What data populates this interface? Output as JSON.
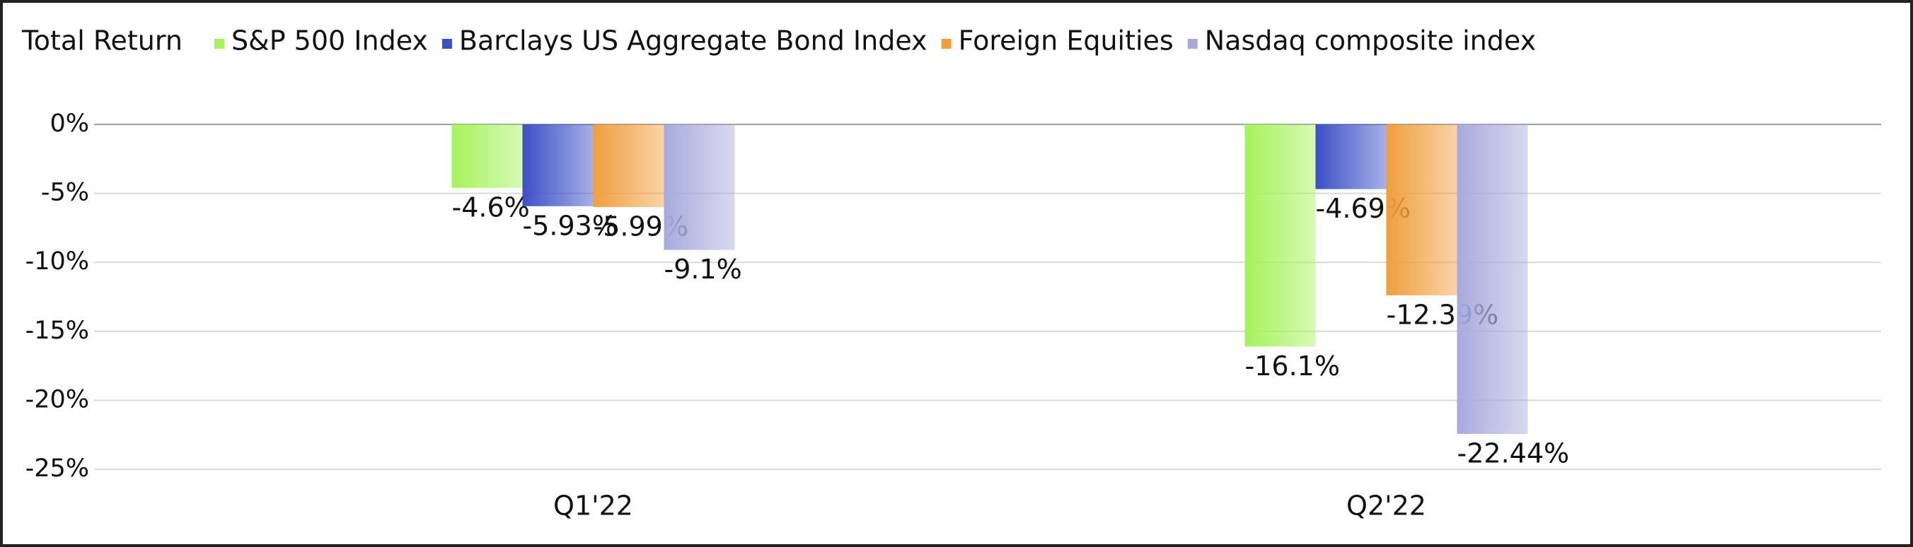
{
  "chart_data": {
    "type": "bar",
    "title": "Total Return",
    "categories": [
      "Q1'22",
      "Q2'22"
    ],
    "series": [
      {
        "name": "S&P 500 Index",
        "color": "#a6f25a",
        "values": [
          -4.6,
          -16.1
        ],
        "value_labels": [
          "-4.6%",
          "-16.1%"
        ]
      },
      {
        "name": "Barclays US Aggregate Bond Index",
        "color": "#3b4fc6",
        "values": [
          -5.93,
          -4.69
        ],
        "value_labels": [
          "-5.93%",
          "-4.69%"
        ]
      },
      {
        "name": "Foreign Equities",
        "color": "#f09e3c",
        "values": [
          -5.99,
          -12.39
        ],
        "value_labels": [
          "-5.99%",
          "-12.39%"
        ]
      },
      {
        "name": "Nasdaq composite index",
        "color": "#a8aadd",
        "values": [
          -9.1,
          -22.44
        ],
        "value_labels": [
          "-9.1%",
          "-22.44%"
        ]
      }
    ],
    "ylim": [
      -25,
      0
    ],
    "yticks": [
      {
        "value": 0,
        "label": "0%"
      },
      {
        "value": -5,
        "label": "-5%"
      },
      {
        "value": -10,
        "label": "-10%"
      },
      {
        "value": -15,
        "label": "-15%"
      },
      {
        "value": -20,
        "label": "-20%"
      },
      {
        "value": -25,
        "label": "-25%"
      }
    ],
    "grid": true
  }
}
